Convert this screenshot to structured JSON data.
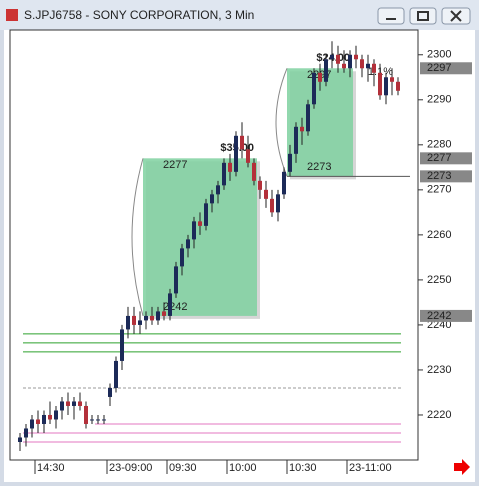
{
  "chart_data": {
    "type": "candlestick",
    "title": "S.JPJ6758 - SONY CORPORATION, 3 Min",
    "categories": [
      null,
      null,
      null,
      "14:30",
      null,
      null,
      null,
      null,
      null,
      null,
      null,
      null,
      null,
      null,
      null,
      "23-09:00",
      null,
      null,
      null,
      null,
      null,
      null,
      null,
      null,
      null,
      "09:30",
      null,
      null,
      null,
      null,
      null,
      null,
      null,
      null,
      null,
      "10:00",
      null,
      null,
      null,
      null,
      null,
      null,
      null,
      null,
      null,
      "10:30",
      null,
      null,
      null,
      null,
      null,
      null,
      null,
      null,
      null,
      "23-11:00",
      null,
      null,
      null,
      null,
      null,
      null,
      null,
      null
    ],
    "open": [
      2214,
      2215,
      2217,
      2219,
      2218,
      2220,
      2219,
      2221,
      2223,
      2222,
      2223,
      2222,
      2219,
      2219,
      2219,
      2224,
      2226,
      2232,
      2239,
      2242,
      2240,
      2241,
      2242,
      2241,
      2243,
      2242,
      2247,
      2253,
      2257,
      2259,
      2263,
      2262,
      2267,
      2269,
      2271,
      2276,
      2274,
      2282,
      2279,
      2276,
      2272,
      2270,
      2268,
      2265,
      2269,
      2274,
      2278,
      2284,
      2283,
      2289,
      2296,
      2294,
      2299,
      2300,
      2298,
      2297,
      2300,
      2299,
      2297,
      2298,
      2296,
      2291,
      2295,
      2294
    ],
    "high": [
      2216,
      2218,
      2220,
      2221,
      2221,
      2223,
      2222,
      2224,
      2225,
      2224,
      2225,
      2223,
      2220,
      2220,
      2220,
      2227,
      2233,
      2240,
      2244,
      2244,
      2243,
      2243,
      2244,
      2244,
      2245,
      2248,
      2254,
      2258,
      2260,
      2264,
      2265,
      2268,
      2270,
      2272,
      2277,
      2278,
      2283,
      2285,
      2282,
      2277,
      2273,
      2272,
      2270,
      2270,
      2275,
      2280,
      2285,
      2286,
      2290,
      2297,
      2298,
      2300,
      2303,
      2302,
      2301,
      2301,
      2302,
      2300,
      2300,
      2299,
      2298,
      2296,
      2297,
      2295
    ],
    "low": [
      2212,
      2213,
      2215,
      2216,
      2216,
      2218,
      2217,
      2219,
      2220,
      2219,
      2221,
      2217,
      2218,
      2218,
      2218,
      2222,
      2225,
      2230,
      2237,
      2238,
      2238,
      2239,
      2240,
      2240,
      2241,
      2241,
      2246,
      2251,
      2255,
      2257,
      2260,
      2261,
      2265,
      2267,
      2270,
      2272,
      2273,
      2277,
      2275,
      2271,
      2268,
      2266,
      2264,
      2263,
      2268,
      2273,
      2276,
      2280,
      2282,
      2288,
      2292,
      2293,
      2297,
      2296,
      2296,
      2295,
      2297,
      2295,
      2294,
      2293,
      2290,
      2289,
      2291,
      2291
    ],
    "close": [
      2215,
      2217,
      2219,
      2218,
      2220,
      2219,
      2221,
      2223,
      2222,
      2223,
      2222,
      2218,
      2219,
      2219,
      2219,
      2226,
      2232,
      2239,
      2242,
      2240,
      2241,
      2242,
      2241,
      2243,
      2242,
      2247,
      2253,
      2257,
      2259,
      2263,
      2262,
      2267,
      2269,
      2271,
      2276,
      2274,
      2282,
      2279,
      2276,
      2272,
      2270,
      2268,
      2265,
      2269,
      2274,
      2278,
      2284,
      2283,
      2289,
      2296,
      2294,
      2299,
      2300,
      2298,
      2297,
      2300,
      2299,
      2297,
      2298,
      2296,
      2291,
      2295,
      2294,
      2292
    ],
    "up_color": "#1c2a58",
    "down_color": "#b3303a",
    "ylim": [
      2210,
      2305.5
    ],
    "yticks": [
      2220,
      2230,
      2240,
      2250,
      2260,
      2270,
      2280,
      2290,
      2300
    ],
    "axis_markers": [
      2297,
      2277,
      2273,
      2242
    ],
    "levels": [
      {
        "value": 2238,
        "color": "#2ca02c",
        "start": 1
      },
      {
        "value": 2236,
        "color": "#2ca02c",
        "start": 1
      },
      {
        "value": 2234,
        "color": "#2ca02c",
        "start": 1
      },
      {
        "value": 2226,
        "color": "#999999",
        "start": 1
      },
      {
        "value": 2218,
        "color": "#e377c2",
        "start": 13
      },
      {
        "value": 2216,
        "color": "#e377c2",
        "start": 1
      },
      {
        "value": 2214,
        "color": "#e377c2",
        "start": 1
      },
      {
        "value": 2273,
        "color": "#555555",
        "start": 45
      }
    ],
    "zones": [
      {
        "start": 21,
        "end": 39,
        "top": 2277,
        "bottom": 2242,
        "label": "$35.00",
        "color": "#7fd1a0"
      },
      {
        "start": 45,
        "end": 55,
        "top": 2297,
        "bottom": 2273,
        "label": "$24.00",
        "pct": "1.1%",
        "color": "#7fd1a0"
      }
    ]
  }
}
